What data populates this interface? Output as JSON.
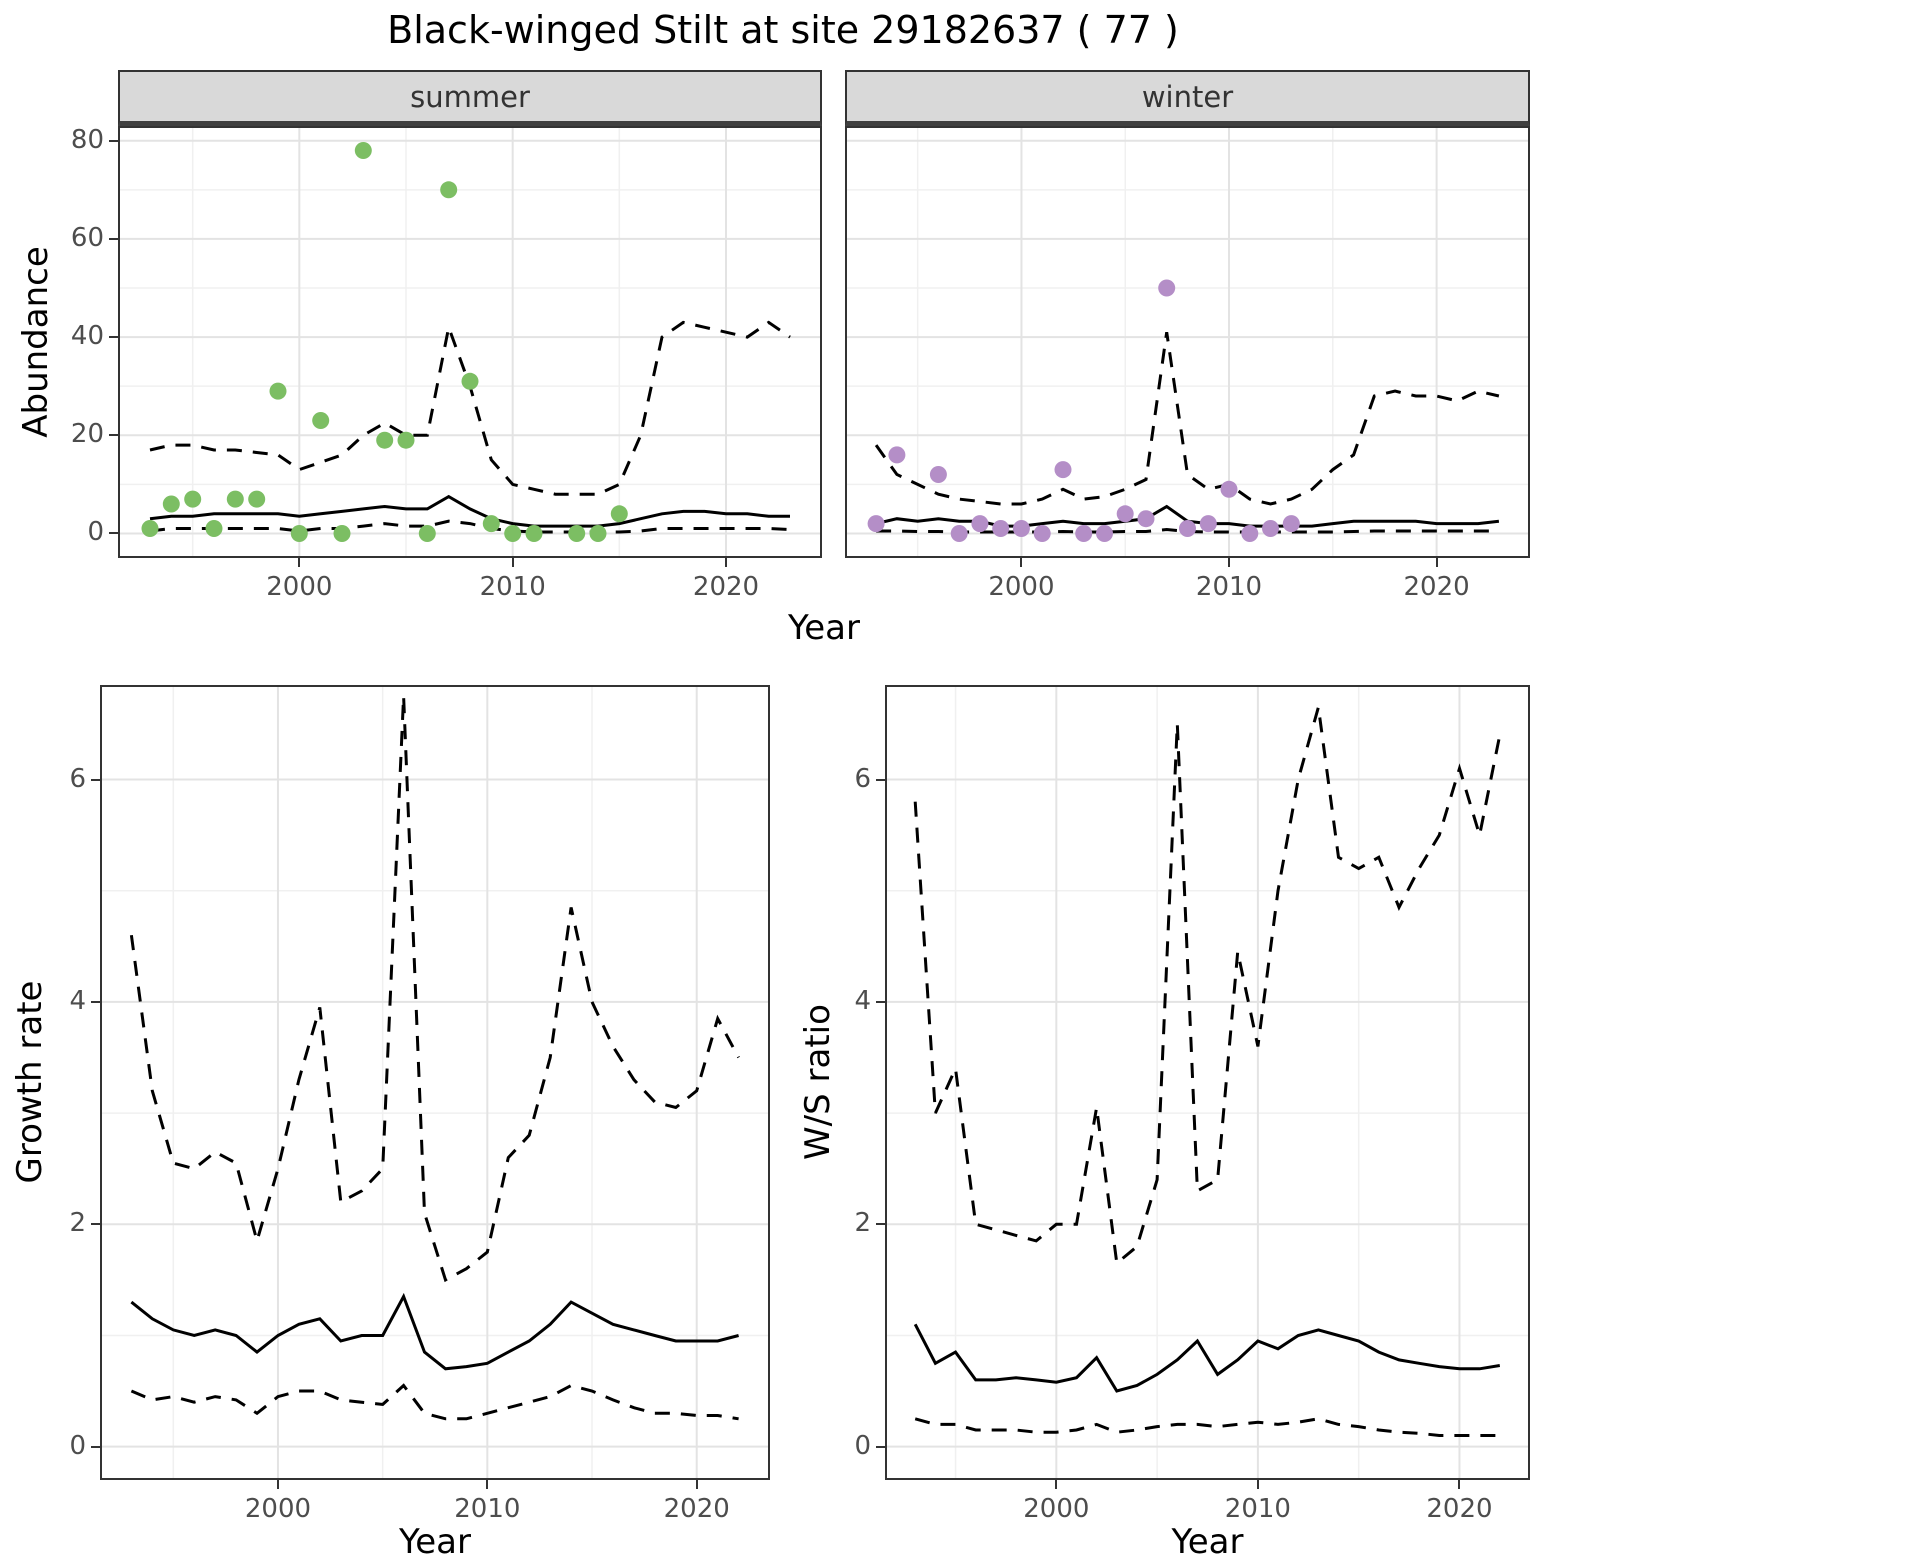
{
  "title": "Black-winged Stilt at site 29182637 ( 77 )",
  "labels": {
    "x_top": "Year",
    "x_growth": "Year",
    "x_ws": "Year",
    "y_top": "Abundance",
    "y_growth": "Growth rate",
    "y_ws": "W/S ratio"
  },
  "facets": {
    "summer": "summer",
    "winter": "winter"
  },
  "style": {
    "summer_point_color": "#7cbe63",
    "winter_point_color": "#b48ec7",
    "line_color": "#000000",
    "strip_bg": "#d9d9d9",
    "grid_major": "#e3e3e3",
    "grid_minor": "#f0f0f0",
    "panel_border": "#333333",
    "tick_label_color": "#4d4d4d"
  },
  "chart_data": [
    {
      "id": "summer",
      "type": "scatter",
      "facet": "summer",
      "xlabel": "Year",
      "ylabel": "Abundance",
      "xlim": [
        1991.5,
        2024.5
      ],
      "ylim": [
        -5,
        83
      ],
      "xticks": [
        2000,
        2010,
        2020
      ],
      "yticks": [
        0,
        20,
        40,
        60,
        80
      ],
      "yticklabels": true,
      "x": [
        1993,
        1994,
        1995,
        1996,
        1997,
        1998,
        1999,
        2000,
        2001,
        2002,
        2003,
        2004,
        2005,
        2006,
        2007,
        2008,
        2009,
        2010,
        2011,
        2012,
        2013,
        2014,
        2015,
        2016,
        2017,
        2018,
        2019,
        2020,
        2021,
        2022,
        2023
      ],
      "series": [
        {
          "name": "mean",
          "style": "solid",
          "values": [
            3,
            3.5,
            3.5,
            4,
            4,
            4,
            4,
            3.5,
            4,
            4.5,
            5,
            5.5,
            5,
            5,
            7.5,
            5,
            3,
            2,
            1.5,
            1.5,
            1.5,
            1.5,
            2,
            3,
            4,
            4.5,
            4.5,
            4,
            4,
            3.5,
            3.5
          ]
        },
        {
          "name": "upper95",
          "style": "dashed",
          "values": [
            17,
            18,
            18,
            17,
            17,
            16.5,
            16,
            13,
            14.5,
            16,
            20,
            22.5,
            20,
            20,
            42,
            30,
            15,
            10,
            9,
            8,
            8,
            8,
            10,
            20,
            40,
            43,
            42,
            41,
            40,
            43,
            40
          ]
        },
        {
          "name": "lower95",
          "style": "dashed",
          "values": [
            0.5,
            1,
            1,
            1,
            1,
            1,
            1,
            0.5,
            1,
            1,
            1.5,
            2,
            1.5,
            1.5,
            2.5,
            2,
            1,
            0.5,
            0.3,
            0.3,
            0.3,
            0.3,
            0.3,
            0.5,
            1,
            1,
            1,
            1,
            1,
            1,
            0.8
          ]
        }
      ],
      "points": {
        "color": "#7cbe63",
        "x": [
          1993,
          1994,
          1995,
          1996,
          1997,
          1998,
          1999,
          2000,
          2001,
          2002,
          2003,
          2004,
          2005,
          2006,
          2007,
          2008,
          2009,
          2010,
          2011,
          2013,
          2014,
          2015
        ],
        "y": [
          1,
          6,
          7,
          1,
          7,
          7,
          29,
          0,
          23,
          0,
          78,
          19,
          19,
          0,
          70,
          31,
          2,
          0,
          0,
          0,
          0,
          4
        ]
      }
    },
    {
      "id": "winter",
      "type": "scatter",
      "facet": "winter",
      "xlabel": "Year",
      "ylabel": "Abundance",
      "xlim": [
        1991.5,
        2024.5
      ],
      "ylim": [
        -5,
        83
      ],
      "xticks": [
        2000,
        2010,
        2020
      ],
      "yticks": [
        0,
        20,
        40,
        60,
        80
      ],
      "yticklabels": false,
      "x": [
        1993,
        1994,
        1995,
        1996,
        1997,
        1998,
        1999,
        2000,
        2001,
        2002,
        2003,
        2004,
        2005,
        2006,
        2007,
        2008,
        2009,
        2010,
        2011,
        2012,
        2013,
        2014,
        2015,
        2016,
        2017,
        2018,
        2019,
        2020,
        2021,
        2022,
        2023
      ],
      "series": [
        {
          "name": "mean",
          "style": "solid",
          "values": [
            2,
            3,
            2.5,
            3,
            2.5,
            2.5,
            1.5,
            1.5,
            2,
            2.5,
            2,
            2,
            2.5,
            3,
            5.5,
            2.5,
            2,
            2,
            1.5,
            1.5,
            1.5,
            1.5,
            2,
            2.5,
            2.5,
            2.5,
            2.5,
            2,
            2,
            2,
            2.5
          ]
        },
        {
          "name": "upper95",
          "style": "dashed",
          "values": [
            18,
            12,
            10,
            8,
            7,
            6.5,
            6,
            6,
            7,
            9,
            7,
            7.5,
            9,
            11,
            41,
            12,
            9,
            10,
            7,
            6,
            7,
            9,
            13,
            16,
            28,
            29,
            28,
            28,
            27,
            29,
            28
          ]
        },
        {
          "name": "lower95",
          "style": "dashed",
          "values": [
            0.5,
            0.5,
            0.4,
            0.4,
            0.3,
            0.3,
            0.3,
            0.3,
            0.3,
            0.4,
            0.3,
            0.3,
            0.4,
            0.4,
            0.8,
            0.4,
            0.3,
            0.3,
            0.3,
            0.3,
            0.3,
            0.3,
            0.3,
            0.4,
            0.5,
            0.5,
            0.5,
            0.5,
            0.5,
            0.5,
            0.5
          ]
        }
      ],
      "points": {
        "color": "#b48ec7",
        "x": [
          1993,
          1994,
          1996,
          1997,
          1998,
          1999,
          2000,
          2001,
          2002,
          2003,
          2004,
          2005,
          2006,
          2007,
          2008,
          2009,
          2010,
          2011,
          2012,
          2013
        ],
        "y": [
          2,
          16,
          12,
          0,
          2,
          1,
          1,
          0,
          13,
          0,
          0,
          4,
          3,
          50,
          1,
          2,
          9,
          0,
          1,
          2
        ]
      }
    },
    {
      "id": "growth",
      "type": "line",
      "facet": "",
      "xlabel": "Year",
      "ylabel": "Growth rate",
      "xlim": [
        1991.5,
        2023.5
      ],
      "ylim": [
        -0.3,
        6.85
      ],
      "xticks": [
        2000,
        2010,
        2020
      ],
      "yticks": [
        0,
        2,
        4,
        6
      ],
      "yticklabels": true,
      "x": [
        1993,
        1994,
        1995,
        1996,
        1997,
        1998,
        1999,
        2000,
        2001,
        2002,
        2003,
        2004,
        2005,
        2006,
        2007,
        2008,
        2009,
        2010,
        2011,
        2012,
        2013,
        2014,
        2015,
        2016,
        2017,
        2018,
        2019,
        2020,
        2021,
        2022
      ],
      "series": [
        {
          "name": "mean",
          "style": "solid",
          "values": [
            1.3,
            1.15,
            1.05,
            1.0,
            1.05,
            1.0,
            0.85,
            1.0,
            1.1,
            1.15,
            0.95,
            1.0,
            1.0,
            1.35,
            0.85,
            0.7,
            0.72,
            0.75,
            0.85,
            0.95,
            1.1,
            1.3,
            1.2,
            1.1,
            1.05,
            1.0,
            0.95,
            0.95,
            0.95,
            1.0
          ]
        },
        {
          "name": "upper95",
          "style": "dashed",
          "values": [
            4.6,
            3.2,
            2.55,
            2.5,
            2.65,
            2.55,
            1.85,
            2.5,
            3.3,
            3.95,
            2.2,
            2.3,
            2.5,
            6.75,
            2.1,
            1.5,
            1.6,
            1.75,
            2.6,
            2.8,
            3.5,
            4.85,
            4.0,
            3.6,
            3.3,
            3.1,
            3.05,
            3.2,
            3.85,
            3.5
          ]
        },
        {
          "name": "lower95",
          "style": "dashed",
          "values": [
            0.5,
            0.42,
            0.45,
            0.4,
            0.45,
            0.42,
            0.3,
            0.45,
            0.5,
            0.5,
            0.42,
            0.4,
            0.38,
            0.55,
            0.3,
            0.25,
            0.25,
            0.3,
            0.35,
            0.4,
            0.45,
            0.55,
            0.5,
            0.42,
            0.35,
            0.3,
            0.3,
            0.28,
            0.28,
            0.25
          ]
        }
      ]
    },
    {
      "id": "ws",
      "type": "line",
      "facet": "",
      "xlabel": "Year",
      "ylabel": "W/S ratio",
      "xlim": [
        1991.5,
        2023.5
      ],
      "ylim": [
        -0.3,
        6.85
      ],
      "xticks": [
        2000,
        2010,
        2020
      ],
      "yticks": [
        0,
        2,
        4,
        6
      ],
      "yticklabels": true,
      "x": [
        1993,
        1994,
        1995,
        1996,
        1997,
        1998,
        1999,
        2000,
        2001,
        2002,
        2003,
        2004,
        2005,
        2006,
        2007,
        2008,
        2009,
        2010,
        2011,
        2012,
        2013,
        2014,
        2015,
        2016,
        2017,
        2018,
        2019,
        2020,
        2021,
        2022
      ],
      "series": [
        {
          "name": "mean",
          "style": "solid",
          "values": [
            1.1,
            0.75,
            0.85,
            0.6,
            0.6,
            0.62,
            0.6,
            0.58,
            0.62,
            0.8,
            0.5,
            0.55,
            0.65,
            0.78,
            0.95,
            0.65,
            0.78,
            0.95,
            0.88,
            1.0,
            1.05,
            1.0,
            0.95,
            0.85,
            0.78,
            0.75,
            0.72,
            0.7,
            0.7,
            0.73
          ]
        },
        {
          "name": "upper95",
          "style": "dashed",
          "values": [
            5.8,
            3.0,
            3.4,
            2.0,
            1.95,
            1.9,
            1.85,
            2.0,
            2.0,
            3.05,
            1.65,
            1.8,
            2.4,
            6.5,
            2.3,
            2.4,
            4.45,
            3.6,
            5.0,
            6.0,
            6.65,
            5.3,
            5.2,
            5.3,
            4.85,
            5.2,
            5.5,
            6.1,
            5.5,
            6.4
          ]
        },
        {
          "name": "lower95",
          "style": "dashed",
          "values": [
            0.25,
            0.2,
            0.2,
            0.15,
            0.15,
            0.15,
            0.13,
            0.13,
            0.15,
            0.2,
            0.13,
            0.15,
            0.18,
            0.2,
            0.2,
            0.18,
            0.2,
            0.22,
            0.2,
            0.22,
            0.25,
            0.2,
            0.18,
            0.15,
            0.13,
            0.12,
            0.1,
            0.1,
            0.1,
            0.1
          ]
        }
      ]
    }
  ]
}
